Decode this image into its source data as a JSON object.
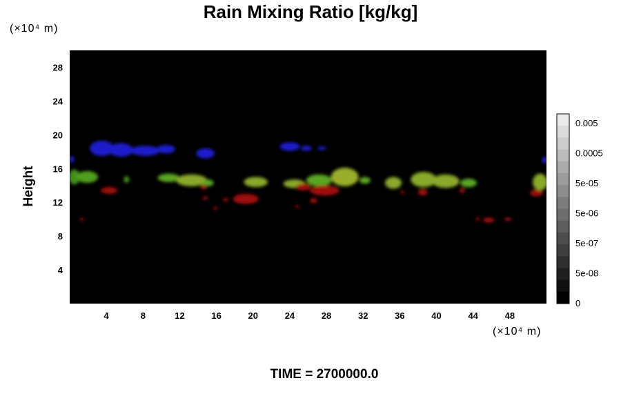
{
  "chart_data": {
    "type": "heatmap",
    "title": "Rain Mixing Ratio [kg/kg]",
    "ylabel": "Height",
    "x_unit": "(×10⁴ m)",
    "y_unit": "(×10⁴ m)",
    "time_label": "TIME = 2700000.0",
    "xlim": [
      0,
      52
    ],
    "ylim": [
      0,
      30
    ],
    "x_ticks": [
      "4",
      "8",
      "12",
      "16",
      "20",
      "24",
      "28",
      "32",
      "36",
      "40",
      "44",
      "48"
    ],
    "y_ticks": [
      "4",
      "8",
      "12",
      "16",
      "20",
      "24",
      "28"
    ],
    "x_tick_values": [
      4,
      8,
      12,
      16,
      20,
      24,
      28,
      32,
      36,
      40,
      44,
      48
    ],
    "y_tick_values": [
      4,
      8,
      12,
      16,
      20,
      24,
      28
    ],
    "colorbar": {
      "labels": [
        "0.005",
        "0.0005",
        "5e-05",
        "5e-06",
        "5e-07",
        "5e-08",
        "0"
      ],
      "levels": 16
    },
    "background_color": "#000000",
    "features": [
      {
        "color": "#1a1acc",
        "x": 3.5,
        "y": 18.4,
        "rx": 1.3,
        "ry": 0.9
      },
      {
        "color": "#1a1acc",
        "x": 5.6,
        "y": 18.2,
        "rx": 1.3,
        "ry": 0.8
      },
      {
        "color": "#1a1acc",
        "x": 8.2,
        "y": 18.1,
        "rx": 1.6,
        "ry": 0.6
      },
      {
        "color": "#1a1acc",
        "x": 10.5,
        "y": 18.3,
        "rx": 1.0,
        "ry": 0.5
      },
      {
        "color": "#1a1acc",
        "x": 14.8,
        "y": 17.8,
        "rx": 1.0,
        "ry": 0.6
      },
      {
        "color": "#1a1acc",
        "x": 24.0,
        "y": 18.6,
        "rx": 1.1,
        "ry": 0.5
      },
      {
        "color": "#1a1acc",
        "x": 25.8,
        "y": 18.4,
        "rx": 0.6,
        "ry": 0.3
      },
      {
        "color": "#1a1acc",
        "x": 27.5,
        "y": 18.4,
        "rx": 0.5,
        "ry": 0.2
      },
      {
        "color": "#1a1acc",
        "x": 51.8,
        "y": 17.0,
        "rx": 0.3,
        "ry": 0.4
      },
      {
        "color": "#1a1acc",
        "x": 0.2,
        "y": 17.1,
        "rx": 0.3,
        "ry": 0.4
      },
      {
        "color": "#3f8f1e",
        "x": 0.5,
        "y": 15.0,
        "rx": 0.6,
        "ry": 0.9
      },
      {
        "color": "#4f9e1c",
        "x": 1.9,
        "y": 15.0,
        "rx": 1.2,
        "ry": 0.7
      },
      {
        "color": "#3f8f1e",
        "x": 6.2,
        "y": 14.7,
        "rx": 0.3,
        "ry": 0.4
      },
      {
        "color": "#5aa520",
        "x": 10.8,
        "y": 14.9,
        "rx": 1.2,
        "ry": 0.5
      },
      {
        "color": "#8aa82a",
        "x": 13.3,
        "y": 14.6,
        "rx": 1.7,
        "ry": 0.7
      },
      {
        "color": "#5aa520",
        "x": 15.1,
        "y": 14.3,
        "rx": 0.6,
        "ry": 0.4
      },
      {
        "color": "#8aa82a",
        "x": 20.3,
        "y": 14.4,
        "rx": 1.3,
        "ry": 0.6
      },
      {
        "color": "#8aa82a",
        "x": 24.5,
        "y": 14.2,
        "rx": 1.2,
        "ry": 0.5
      },
      {
        "color": "#5aa520",
        "x": 27.2,
        "y": 14.6,
        "rx": 1.4,
        "ry": 0.7
      },
      {
        "color": "#9aae2a",
        "x": 30.0,
        "y": 15.0,
        "rx": 1.5,
        "ry": 1.1
      },
      {
        "color": "#5aa520",
        "x": 32.2,
        "y": 14.6,
        "rx": 0.6,
        "ry": 0.4
      },
      {
        "color": "#8aa82a",
        "x": 35.3,
        "y": 14.3,
        "rx": 0.9,
        "ry": 0.7
      },
      {
        "color": "#8aa82a",
        "x": 38.6,
        "y": 14.7,
        "rx": 1.4,
        "ry": 0.9
      },
      {
        "color": "#8aa82a",
        "x": 41.0,
        "y": 14.5,
        "rx": 1.5,
        "ry": 0.8
      },
      {
        "color": "#5aa520",
        "x": 43.5,
        "y": 14.3,
        "rx": 0.9,
        "ry": 0.5
      },
      {
        "color": "#8aa82a",
        "x": 51.3,
        "y": 14.4,
        "rx": 0.8,
        "ry": 1.0
      },
      {
        "color": "#a01010",
        "x": 4.3,
        "y": 13.4,
        "rx": 0.9,
        "ry": 0.4
      },
      {
        "color": "#a01010",
        "x": 14.6,
        "y": 13.8,
        "rx": 0.3,
        "ry": 0.3
      },
      {
        "color": "#a01010",
        "x": 14.8,
        "y": 12.5,
        "rx": 0.3,
        "ry": 0.2
      },
      {
        "color": "#a01010",
        "x": 17.0,
        "y": 12.3,
        "rx": 0.3,
        "ry": 0.2
      },
      {
        "color": "#a01010",
        "x": 19.2,
        "y": 12.4,
        "rx": 1.4,
        "ry": 0.6
      },
      {
        "color": "#a01010",
        "x": 15.9,
        "y": 11.3,
        "rx": 0.2,
        "ry": 0.2
      },
      {
        "color": "#a01010",
        "x": 25.5,
        "y": 13.8,
        "rx": 0.8,
        "ry": 0.4
      },
      {
        "color": "#a01010",
        "x": 27.8,
        "y": 13.4,
        "rx": 1.6,
        "ry": 0.6
      },
      {
        "color": "#a01010",
        "x": 26.6,
        "y": 12.2,
        "rx": 0.4,
        "ry": 0.3
      },
      {
        "color": "#a01010",
        "x": 24.8,
        "y": 11.5,
        "rx": 0.2,
        "ry": 0.2
      },
      {
        "color": "#a01010",
        "x": 38.5,
        "y": 13.2,
        "rx": 0.5,
        "ry": 0.4
      },
      {
        "color": "#a01010",
        "x": 36.3,
        "y": 13.2,
        "rx": 0.2,
        "ry": 0.2
      },
      {
        "color": "#a01010",
        "x": 42.8,
        "y": 13.4,
        "rx": 0.3,
        "ry": 0.3
      },
      {
        "color": "#a01010",
        "x": 50.9,
        "y": 13.1,
        "rx": 0.7,
        "ry": 0.4
      },
      {
        "color": "#a01010",
        "x": 45.7,
        "y": 9.9,
        "rx": 0.6,
        "ry": 0.3
      },
      {
        "color": "#a01010",
        "x": 47.8,
        "y": 10.0,
        "rx": 0.4,
        "ry": 0.2
      },
      {
        "color": "#a01010",
        "x": 44.5,
        "y": 10.0,
        "rx": 0.2,
        "ry": 0.2
      },
      {
        "color": "#a01010",
        "x": 1.3,
        "y": 10.0,
        "rx": 0.2,
        "ry": 0.2
      }
    ]
  }
}
